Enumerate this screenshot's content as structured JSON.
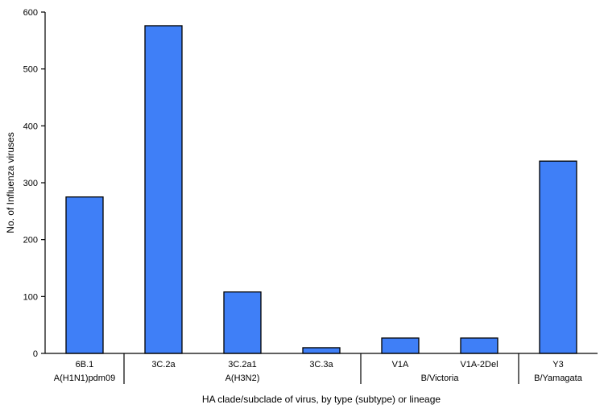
{
  "chart_data": {
    "type": "bar",
    "xlabel": "HA clade/subclade of virus, by type (subtype) or lineage",
    "ylabel": "No. of Influenza viruses",
    "ylim": [
      0,
      600
    ],
    "yticks": [
      0,
      100,
      200,
      300,
      400,
      500,
      600
    ],
    "categories": [
      "6B.1",
      "3C.2a",
      "3C.2a1",
      "3C.3a",
      "V1A",
      "V1A-2Del",
      "Y3"
    ],
    "values": [
      275,
      576,
      108,
      10,
      27,
      27,
      338
    ],
    "groups": [
      {
        "label": "A(H1N1)pdm09",
        "span": [
          0,
          0
        ]
      },
      {
        "label": "A(H3N2)",
        "span": [
          1,
          3
        ]
      },
      {
        "label": "B/Victoria",
        "span": [
          4,
          5
        ]
      },
      {
        "label": "B/Yamagata",
        "span": [
          6,
          6
        ]
      }
    ],
    "bar_color": "#3f7ff7",
    "grid": false
  }
}
